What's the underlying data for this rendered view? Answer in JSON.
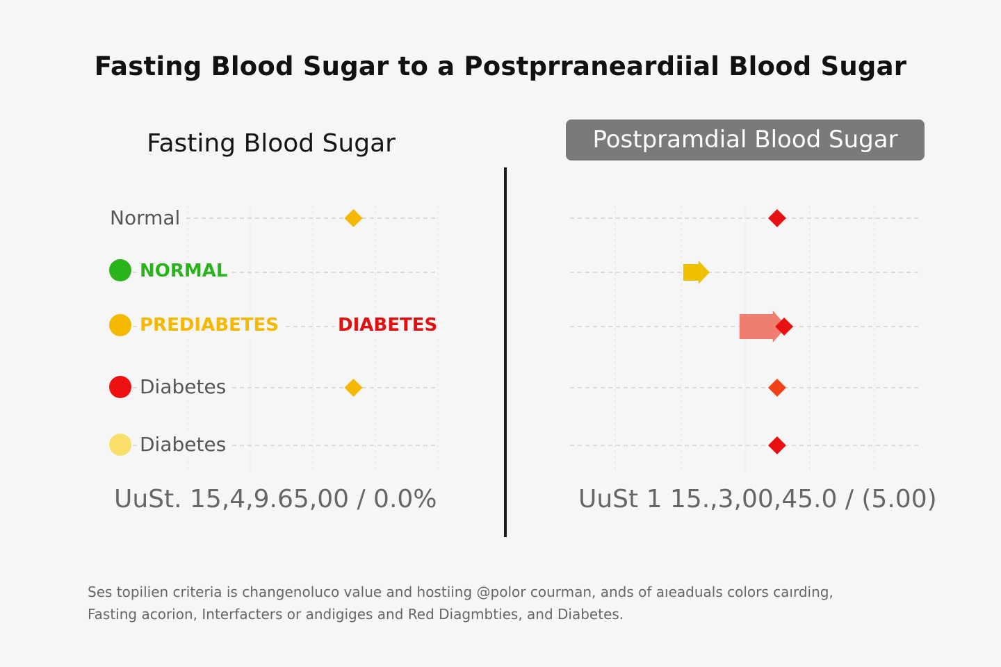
{
  "title": "Fasting Blood Sugar to a Postprraneardiial Blood Sugar",
  "left_panel": {
    "title": "Fasting Blood Sugar",
    "rows": [
      {
        "label": "Normal",
        "dot_color": "",
        "label_color": "#555555"
      },
      {
        "label": "NORMAL",
        "dot_color": "#2bb31c",
        "label_color": "#2bb31c"
      },
      {
        "label": "PREDIABETES",
        "dot_color": "#f5b800",
        "label_color": "#f5b800",
        "extra_label": "DIABETES",
        "extra_color": "#e01010"
      },
      {
        "label": "Diabetes",
        "dot_color": "#ee1111",
        "label_color": "#555555"
      },
      {
        "label": "Diabetes",
        "dot_color": "#fade6a",
        "label_color": "#555555"
      }
    ],
    "stat": "UuSt. 15,4,9.65,00 / 0.0%"
  },
  "right_panel": {
    "title": "Postpramdial Blood Sugar",
    "stat": "UuSt 1 15.,3,00,45.0 /  (5.00)"
  },
  "note": {
    "line1": "Ses topilien criteria is changenoluco value and hostiing @polor courman, ands of aıeaduals colors caırding,",
    "line2": "Fasting acorion, Interfacters or andigiges and Red Diagmbties, and Diabetes."
  },
  "chart_data": [
    {
      "type": "scatter",
      "title": "Fasting Blood Sugar",
      "categories": [
        "Normal",
        "NORMAL",
        "PREDIABETES",
        "Diabetes",
        "Diabetes"
      ],
      "points": [
        {
          "category": "Normal",
          "value": 0.73,
          "marker": "diamond",
          "color": "#f5b800"
        },
        {
          "category": "Diabetes",
          "value": 0.73,
          "marker": "diamond",
          "color": "#f5b800"
        }
      ],
      "xlim": [
        0,
        1
      ],
      "grid": true
    },
    {
      "type": "scatter",
      "title": "Postpramdial Blood Sugar",
      "categories": [
        "Normal",
        "NORMAL",
        "PREDIABETES",
        "Diabetes",
        "Diabetes"
      ],
      "points": [
        {
          "category": "Normal",
          "value": 0.59,
          "marker": "diamond",
          "color": "#e81010"
        },
        {
          "category": "NORMAL",
          "value": 0.36,
          "marker": "arrow",
          "color": "#f0c000"
        },
        {
          "category": "PREDIABETES",
          "value": 0.55,
          "marker": "arrow",
          "color": "#f07e70"
        },
        {
          "category": "PREDIABETES",
          "value": 0.61,
          "marker": "diamond",
          "color": "#e81010"
        },
        {
          "category": "Diabetes",
          "value": 0.59,
          "marker": "diamond",
          "color": "#f0421a"
        },
        {
          "category": "Diabetes",
          "value": 0.59,
          "marker": "diamond",
          "color": "#e81010"
        }
      ],
      "xlim": [
        0,
        1
      ],
      "grid": true
    }
  ]
}
